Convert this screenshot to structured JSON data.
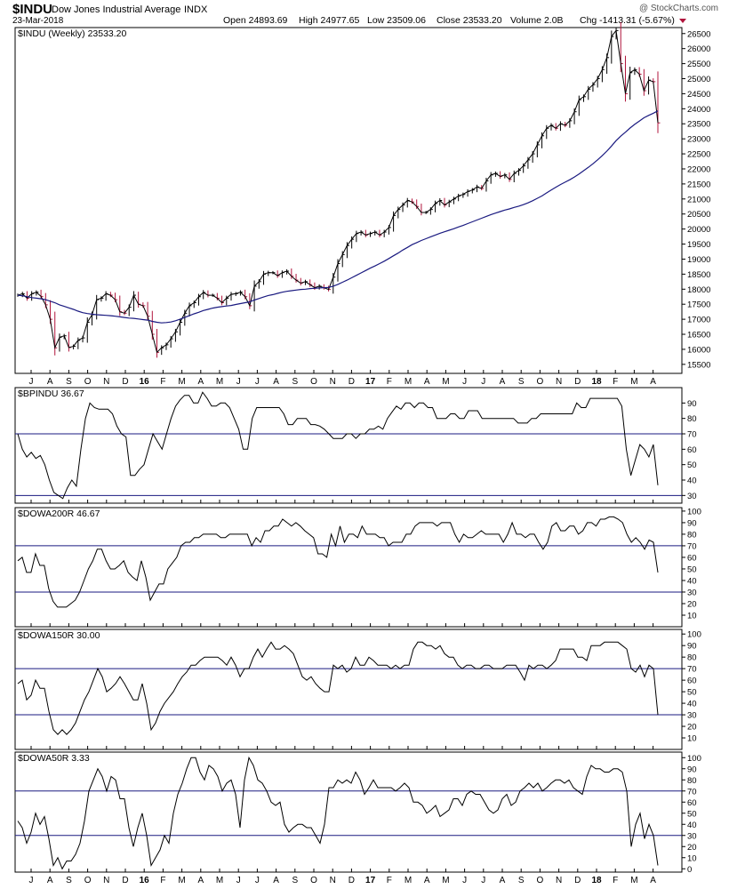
{
  "header": {
    "symbol": "$INDU",
    "name": "Dow Jones Industrial Average",
    "exchange": "INDX",
    "date": "23-Mar-2018",
    "open": "Open 24893.69",
    "high": "High 24977.65",
    "low": "Low 23509.06",
    "close": "Close 23533.20",
    "volume": "Volume 2.0B",
    "chg": "Chg -1413.31 (-5.67%)",
    "watermark": "@ StockCharts.com"
  },
  "x_axis_labels": [
    "J",
    "A",
    "S",
    "O",
    "N",
    "D",
    "16",
    "F",
    "M",
    "A",
    "M",
    "J",
    "J",
    "A",
    "S",
    "O",
    "N",
    "D",
    "17",
    "F",
    "M",
    "A",
    "M",
    "J",
    "J",
    "A",
    "S",
    "O",
    "N",
    "D",
    "18",
    "F",
    "M",
    "A"
  ],
  "x_axis_bold": [
    "16",
    "17",
    "18"
  ],
  "colors": {
    "price_line": "#000000",
    "ma_line": "#1a1a80",
    "down_bar": "#b0143c",
    "up_bar": "#000000",
    "ref_line": "#1a1a80",
    "border": "#000000"
  },
  "chart_data": [
    {
      "type": "line",
      "label": "$INDU (Weekly) 23533.20",
      "ylim": [
        15200,
        26700
      ],
      "ticks": [
        15500,
        16000,
        16500,
        17000,
        17500,
        18000,
        18500,
        19000,
        19500,
        20000,
        20500,
        21000,
        21500,
        22000,
        22500,
        23000,
        23500,
        24000,
        24500,
        25000,
        25500,
        26000,
        26500
      ],
      "series": [
        {
          "name": "$INDU",
          "values": [
            17800,
            17850,
            17700,
            17850,
            17900,
            17760,
            17480,
            17000,
            16050,
            16400,
            16450,
            16060,
            16100,
            16300,
            16380,
            16900,
            17150,
            17650,
            17700,
            17850,
            17800,
            17650,
            17250,
            17200,
            17400,
            17800,
            17500,
            17450,
            17100,
            16500,
            15900,
            16050,
            16150,
            16350,
            16580,
            16900,
            17200,
            17450,
            17550,
            17750,
            17890,
            17800,
            17800,
            17700,
            17550,
            17700,
            17830,
            17850,
            17900,
            17750,
            17450,
            18100,
            18250,
            18500,
            18550,
            18550,
            18450,
            18550,
            18600,
            18430,
            18300,
            18200,
            18250,
            18150,
            18050,
            18100,
            18050,
            17990,
            18400,
            18850,
            19150,
            19450,
            19660,
            19850,
            19900,
            19800,
            19850,
            19900,
            19800,
            19900,
            20050,
            20450,
            20650,
            20800,
            20950,
            20900,
            20750,
            20550,
            20550,
            20650,
            20850,
            20950,
            20800,
            20900,
            21000,
            21100,
            21150,
            21250,
            21300,
            21400,
            21350,
            21600,
            21800,
            21850,
            21750,
            21800,
            21650,
            21850,
            21950,
            22100,
            22300,
            22500,
            22800,
            23100,
            23350,
            23450,
            23350,
            23500,
            23450,
            23600,
            23900,
            24300,
            24400,
            24650,
            24800,
            25000,
            25300,
            25700,
            26400,
            26600,
            25500,
            24500,
            25200,
            25300,
            25150,
            24600,
            24950,
            24900,
            23530
          ]
        },
        {
          "name": "MA",
          "values": [
            17800,
            17780,
            17750,
            17720,
            17700,
            17680,
            17650,
            17600,
            17550,
            17480,
            17430,
            17380,
            17330,
            17270,
            17220,
            17190,
            17170,
            17150,
            17140,
            17130,
            17120,
            17100,
            17080,
            17060,
            17040,
            17030,
            17010,
            16990,
            16970,
            16930,
            16900,
            16880,
            16890,
            16910,
            16950,
            17000,
            17060,
            17120,
            17180,
            17230,
            17290,
            17330,
            17370,
            17400,
            17420,
            17440,
            17460,
            17490,
            17520,
            17550,
            17580,
            17640,
            17690,
            17740,
            17790,
            17820,
            17860,
            17900,
            17930,
            17950,
            17970,
            17990,
            18000,
            18020,
            18030,
            18040,
            18050,
            18060,
            18100,
            18160,
            18230,
            18300,
            18380,
            18460,
            18540,
            18620,
            18700,
            18770,
            18850,
            18930,
            19020,
            19110,
            19200,
            19300,
            19390,
            19480,
            19550,
            19620,
            19680,
            19740,
            19800,
            19860,
            19910,
            19960,
            20010,
            20070,
            20120,
            20180,
            20240,
            20300,
            20360,
            20420,
            20480,
            20530,
            20580,
            20630,
            20670,
            20720,
            20760,
            20810,
            20870,
            20940,
            21020,
            21100,
            21200,
            21300,
            21390,
            21480,
            21560,
            21640,
            21730,
            21830,
            21940,
            22050,
            22170,
            22300,
            22440,
            22590,
            22760,
            22940,
            23090,
            23220,
            23360,
            23480,
            23590,
            23700,
            23780,
            23850,
            23930
          ]
        }
      ]
    },
    {
      "type": "line",
      "label": "$BPINDU 36.67",
      "ylim": [
        25,
        100
      ],
      "ticks": [
        30,
        40,
        50,
        60,
        70,
        80,
        90
      ],
      "reference_lines": [
        30,
        70
      ],
      "series": [
        {
          "name": "$BPINDU",
          "values": [
            70,
            60,
            55,
            58,
            54,
            56,
            50,
            40,
            32,
            30,
            28,
            35,
            40,
            36,
            60,
            80,
            90,
            87,
            86,
            86,
            86,
            83,
            75,
            70,
            68,
            43,
            43,
            47,
            50,
            60,
            70,
            65,
            60,
            70,
            80,
            88,
            92,
            95,
            95,
            90,
            90,
            97,
            93,
            88,
            88,
            90,
            90,
            87,
            80,
            73,
            60,
            60,
            80,
            87,
            87,
            87,
            87,
            87,
            87,
            83,
            76,
            76,
            80,
            80,
            80,
            76,
            76,
            75,
            73,
            70,
            67,
            67,
            67,
            70,
            70,
            67,
            70,
            70,
            73,
            73,
            75,
            73,
            80,
            84,
            88,
            86,
            90,
            90,
            87,
            90,
            90,
            87,
            87,
            80,
            80,
            80,
            83,
            83,
            80,
            80,
            85,
            85,
            85,
            80,
            80,
            80,
            80,
            80,
            80,
            80,
            80,
            77,
            77,
            77,
            80,
            80,
            83,
            83,
            83,
            83,
            83,
            83,
            83,
            83,
            90,
            87,
            87,
            93,
            93,
            93,
            93,
            93,
            93,
            93,
            88,
            60,
            43,
            53,
            63,
            60,
            55,
            63,
            36.67
          ]
        }
      ]
    },
    {
      "type": "line",
      "label": "$DOWA200R 46.67",
      "ylim": [
        0,
        103
      ],
      "ticks": [
        10,
        20,
        30,
        40,
        50,
        60,
        70,
        80,
        90,
        100
      ],
      "reference_lines": [
        30,
        70
      ],
      "series": [
        {
          "name": "$DOWA200R",
          "values": [
            57,
            60,
            47,
            47,
            63,
            53,
            53,
            33,
            22,
            17,
            17,
            17,
            20,
            23,
            30,
            40,
            50,
            57,
            67,
            67,
            57,
            50,
            50,
            53,
            57,
            47,
            43,
            40,
            57,
            43,
            23,
            30,
            37,
            37,
            50,
            55,
            60,
            70,
            73,
            73,
            77,
            77,
            80,
            80,
            80,
            80,
            77,
            77,
            80,
            80,
            80,
            80,
            80,
            70,
            77,
            73,
            83,
            83,
            87,
            87,
            93,
            90,
            87,
            90,
            87,
            83,
            80,
            77,
            63,
            63,
            60,
            80,
            70,
            87,
            73,
            80,
            80,
            77,
            87,
            80,
            80,
            80,
            77,
            77,
            70,
            73,
            73,
            73,
            80,
            80,
            87,
            90,
            90,
            90,
            90,
            87,
            90,
            90,
            90,
            80,
            73,
            80,
            77,
            77,
            80,
            83,
            80,
            80,
            80,
            80,
            73,
            80,
            90,
            80,
            80,
            77,
            80,
            80,
            73,
            67,
            73,
            87,
            90,
            83,
            83,
            87,
            87,
            80,
            83,
            90,
            90,
            87,
            93,
            93,
            95,
            95,
            93,
            90,
            80,
            73,
            77,
            73,
            67,
            75,
            73,
            47
          ]
        }
      ]
    },
    {
      "type": "line",
      "label": "$DOWA150R 30.00",
      "ylim": [
        0,
        104
      ],
      "ticks": [
        10,
        20,
        30,
        40,
        50,
        60,
        70,
        80,
        90,
        100
      ],
      "reference_lines": [
        30,
        70
      ],
      "series": [
        {
          "name": "$DOWA150R",
          "values": [
            57,
            60,
            43,
            47,
            60,
            53,
            53,
            33,
            17,
            13,
            17,
            13,
            17,
            23,
            33,
            43,
            50,
            60,
            70,
            63,
            50,
            53,
            57,
            63,
            57,
            50,
            43,
            43,
            57,
            40,
            17,
            23,
            33,
            40,
            45,
            50,
            57,
            63,
            67,
            73,
            73,
            77,
            80,
            80,
            80,
            80,
            77,
            73,
            80,
            73,
            63,
            70,
            70,
            80,
            87,
            80,
            87,
            93,
            87,
            87,
            90,
            87,
            83,
            73,
            63,
            60,
            63,
            57,
            53,
            50,
            50,
            73,
            70,
            73,
            67,
            70,
            80,
            73,
            73,
            80,
            77,
            73,
            73,
            73,
            70,
            73,
            70,
            73,
            73,
            87,
            93,
            93,
            90,
            90,
            87,
            90,
            83,
            80,
            80,
            73,
            70,
            73,
            73,
            70,
            70,
            73,
            73,
            70,
            70,
            70,
            73,
            73,
            73,
            67,
            60,
            73,
            70,
            73,
            73,
            70,
            73,
            77,
            87,
            87,
            87,
            87,
            80,
            80,
            77,
            90,
            90,
            90,
            93,
            93,
            93,
            93,
            90,
            87,
            70,
            67,
            73,
            63,
            73,
            70,
            30
          ]
        }
      ]
    },
    {
      "type": "line",
      "label": "$DOWA50R 3.33",
      "ylim": [
        -3,
        105
      ],
      "ticks": [
        0,
        10,
        20,
        30,
        40,
        50,
        60,
        70,
        80,
        90,
        100
      ],
      "reference_lines": [
        30,
        70
      ],
      "series": [
        {
          "name": "$DOWA50R",
          "values": [
            43,
            37,
            23,
            33,
            50,
            40,
            47,
            27,
            3,
            10,
            0,
            7,
            7,
            13,
            23,
            43,
            70,
            80,
            90,
            83,
            70,
            83,
            80,
            63,
            63,
            37,
            20,
            37,
            50,
            30,
            3,
            10,
            17,
            30,
            23,
            50,
            67,
            77,
            90,
            100,
            100,
            87,
            80,
            93,
            90,
            83,
            70,
            77,
            80,
            67,
            37,
            80,
            100,
            93,
            80,
            77,
            70,
            60,
            57,
            60,
            40,
            33,
            37,
            40,
            40,
            37,
            37,
            30,
            23,
            40,
            73,
            73,
            80,
            77,
            80,
            77,
            87,
            80,
            67,
            73,
            80,
            73,
            73,
            73,
            73,
            70,
            73,
            77,
            73,
            60,
            60,
            57,
            50,
            53,
            57,
            47,
            50,
            53,
            63,
            63,
            57,
            67,
            70,
            67,
            67,
            60,
            53,
            50,
            53,
            63,
            67,
            57,
            60,
            70,
            73,
            77,
            73,
            77,
            70,
            73,
            77,
            80,
            80,
            77,
            80,
            73,
            70,
            67,
            83,
            93,
            90,
            90,
            87,
            87,
            90,
            90,
            87,
            70,
            20,
            40,
            50,
            27,
            40,
            30,
            3
          ]
        }
      ]
    }
  ]
}
